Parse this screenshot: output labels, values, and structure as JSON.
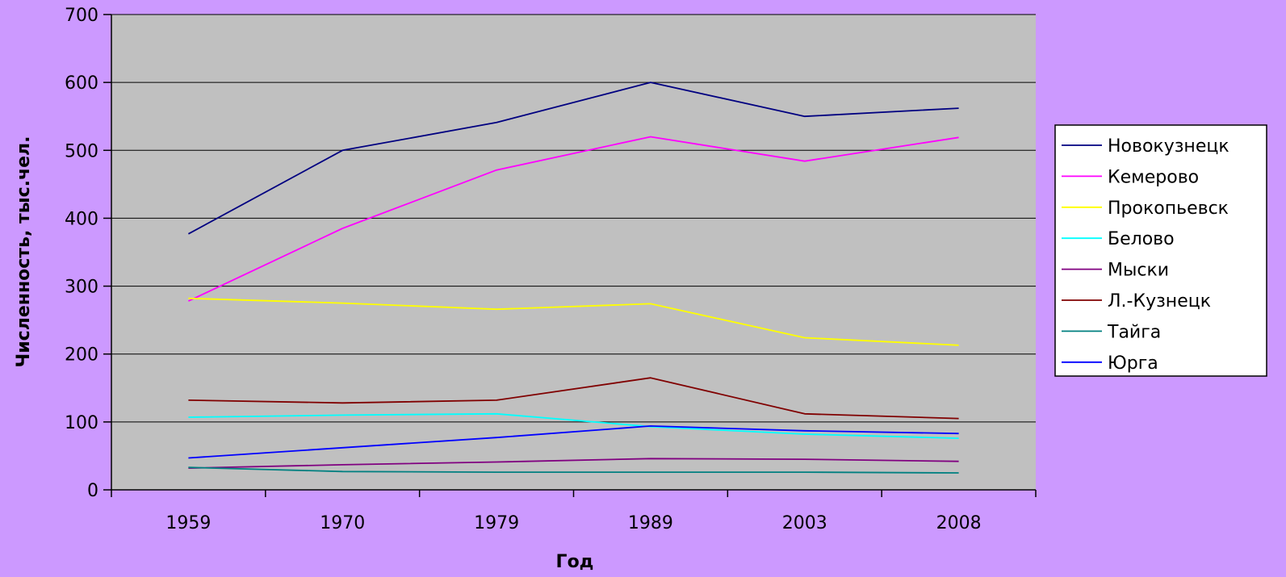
{
  "chart_data": {
    "type": "line",
    "title": "",
    "xlabel": "Год",
    "ylabel": "Численность, тыс.чел.",
    "categories": [
      "1959",
      "1970",
      "1979",
      "1989",
      "2003",
      "2008"
    ],
    "ylim": [
      0,
      700
    ],
    "yticks": [
      "0",
      "100",
      "200",
      "300",
      "400",
      "500",
      "600",
      "700"
    ],
    "grid": true,
    "legend_position": "right",
    "plot_background": "#c0c0c0",
    "page_background": "#cc99ff",
    "series": [
      {
        "name": "Новокузнецк",
        "color": "#000080",
        "values": [
          377,
          500,
          541,
          600,
          550,
          562
        ]
      },
      {
        "name": "Кемерово",
        "color": "#ff00ff",
        "values": [
          278,
          385,
          471,
          520,
          484,
          519
        ]
      },
      {
        "name": "Прокопьевск",
        "color": "#ffff00",
        "values": [
          282,
          275,
          266,
          274,
          224,
          213
        ]
      },
      {
        "name": "Белово",
        "color": "#00ffff",
        "values": [
          107,
          110,
          112,
          93,
          82,
          76
        ]
      },
      {
        "name": "Мыски",
        "color": "#800080",
        "values": [
          32,
          37,
          41,
          46,
          45,
          42
        ]
      },
      {
        "name": "Л.-Кузнецк",
        "color": "#800000",
        "values": [
          132,
          128,
          132,
          165,
          112,
          105
        ]
      },
      {
        "name": "Тайга",
        "color": "#008080",
        "values": [
          33,
          27,
          26,
          26,
          26,
          25
        ]
      },
      {
        "name": "Юрга",
        "color": "#0000ff",
        "values": [
          47,
          62,
          77,
          94,
          87,
          83
        ]
      }
    ]
  }
}
